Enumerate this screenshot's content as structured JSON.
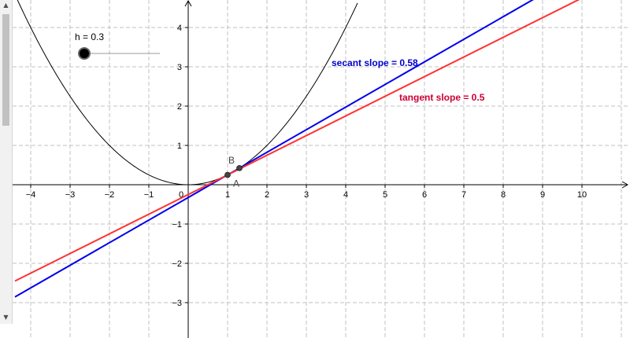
{
  "slider": {
    "label": "h = 0.3",
    "value": 0.3,
    "knob_color": "#000000",
    "track_color": "#999999"
  },
  "labels": {
    "secant": "secant slope = 0.58",
    "tangent": "tangent slope = 0.5",
    "point_a": "A",
    "point_b": "B"
  },
  "scrollbar": {
    "up_icon": "triangle-up",
    "down_icon": "triangle-down"
  },
  "colors": {
    "curve": "#000000",
    "secant": "#0000ee",
    "tangent": "#ff3333",
    "secant_label": "#0000cc",
    "tangent_label": "#cc0033",
    "grid": "#c0c0c0",
    "axis": "#000000",
    "point_fill": "#444444"
  },
  "chart_data": {
    "type": "line",
    "xlim": [
      -4.4,
      11.2
    ],
    "ylim": [
      -3.85,
      4.7
    ],
    "grid": true,
    "x_ticks": [
      -4,
      -3,
      -2,
      -1,
      0,
      1,
      2,
      3,
      4,
      5,
      6,
      7,
      8,
      9,
      10
    ],
    "y_ticks": [
      -3,
      -2,
      -1,
      1,
      2,
      3,
      4
    ],
    "series": [
      {
        "kind": "parabola",
        "color": "#000000",
        "a": 0.25,
        "x_range": [
          -4.4,
          4.3
        ]
      },
      {
        "kind": "line",
        "color": "#0000ee",
        "slope": 0.575,
        "intercept": -0.325,
        "x_range": [
          -4.4,
          11.2
        ]
      },
      {
        "kind": "line",
        "color": "#ff3333",
        "slope": 0.5,
        "intercept": -0.25,
        "x_range": [
          -4.4,
          11.2
        ]
      }
    ],
    "points": [
      {
        "name": "A",
        "x": 1.0,
        "y": 0.25
      },
      {
        "name": "B",
        "x": 1.3,
        "y": 0.4225
      }
    ]
  }
}
